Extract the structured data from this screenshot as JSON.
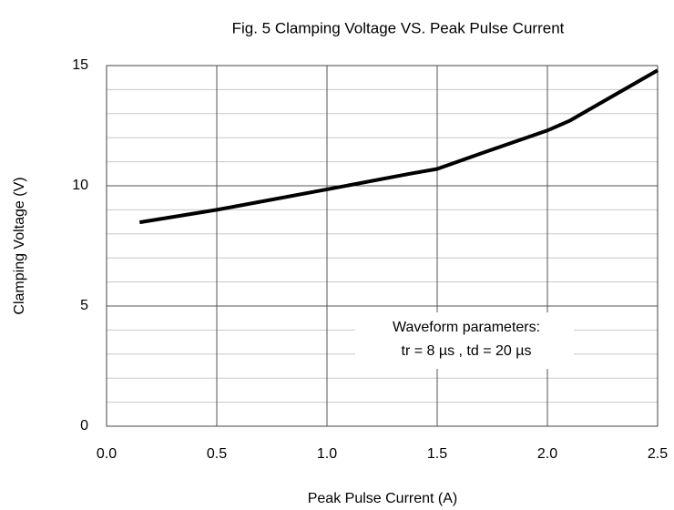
{
  "chart_data": {
    "type": "line",
    "title": "Fig. 5 Clamping Voltage VS. Peak Pulse Current",
    "x_label": "Peak Pulse Current (A)",
    "y_label": "Clamping Voltage (V)",
    "annotations": [
      "Waveform parameters:",
      "tr = 8 µs , td = 20 µs"
    ],
    "x": [
      0.15,
      0.5,
      1.0,
      1.375,
      1.5,
      1.7,
      2.0,
      2.1,
      2.5
    ],
    "series": [
      {
        "name": "Clamping Voltage",
        "color": "#000000",
        "values": [
          8.48,
          9.0,
          9.85,
          10.5,
          10.7,
          11.35,
          12.3,
          12.7,
          14.8
        ]
      }
    ],
    "xlim": [
      0,
      2.5
    ],
    "ylim": [
      0,
      15
    ],
    "xticks": [
      {
        "value": 0,
        "label": "0.0"
      },
      0.5,
      {
        "value": 1,
        "label": "1.0"
      },
      1.5,
      {
        "value": 2,
        "label": "2.0"
      },
      2.5
    ],
    "yticks": [
      0,
      5,
      10,
      15
    ],
    "y_minor_ticks": [
      1,
      2,
      3,
      4,
      6,
      7,
      8,
      9,
      11,
      12,
      13,
      14
    ],
    "grid": true
  }
}
